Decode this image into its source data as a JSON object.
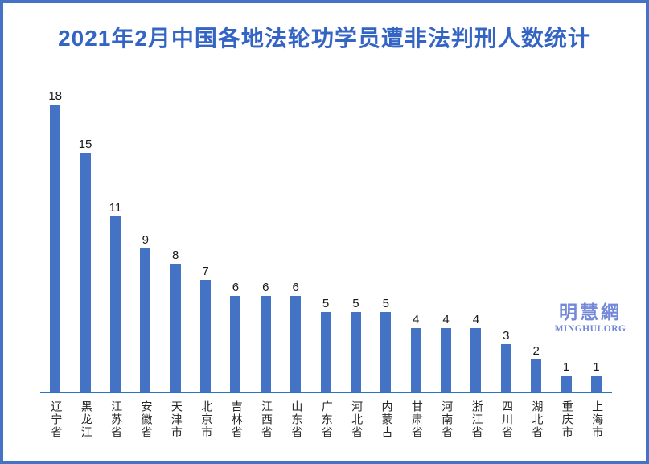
{
  "title": "2021年2月中国各地法轮功学员遭非法判刑人数统计",
  "watermark": {
    "cjk": "明慧網",
    "latin": "MINGHUI.ORG"
  },
  "colors": {
    "bar": "#4472c4",
    "axis": "#2474c8",
    "frame_border": "#4472c4",
    "title": "#3565c4",
    "watermark": "#7388d8",
    "value_label": "#1a1a1a",
    "category_label": "#262626"
  },
  "chart_data": {
    "type": "bar",
    "title": "2021年2月中国各地法轮功学员遭非法判刑人数统计",
    "categories": [
      "辽宁省",
      "黑龙江",
      "江苏省",
      "安徽省",
      "天津市",
      "北京市",
      "吉林省",
      "江西省",
      "山东省",
      "广东省",
      "河北省",
      "内蒙古",
      "甘肃省",
      "河南省",
      "浙江省",
      "四川省",
      "湖北省",
      "重庆市",
      "上海市"
    ],
    "values": [
      18,
      15,
      11,
      9,
      8,
      7,
      6,
      6,
      6,
      5,
      5,
      5,
      4,
      4,
      4,
      3,
      2,
      1,
      1
    ],
    "xlabel": "",
    "ylabel": "",
    "ylim": [
      0,
      18
    ],
    "grid": false,
    "legend": false,
    "value_labels": true,
    "bar_color": "#4472c4",
    "orientation": "vertical",
    "category_label_orientation": "vertical-upright"
  }
}
